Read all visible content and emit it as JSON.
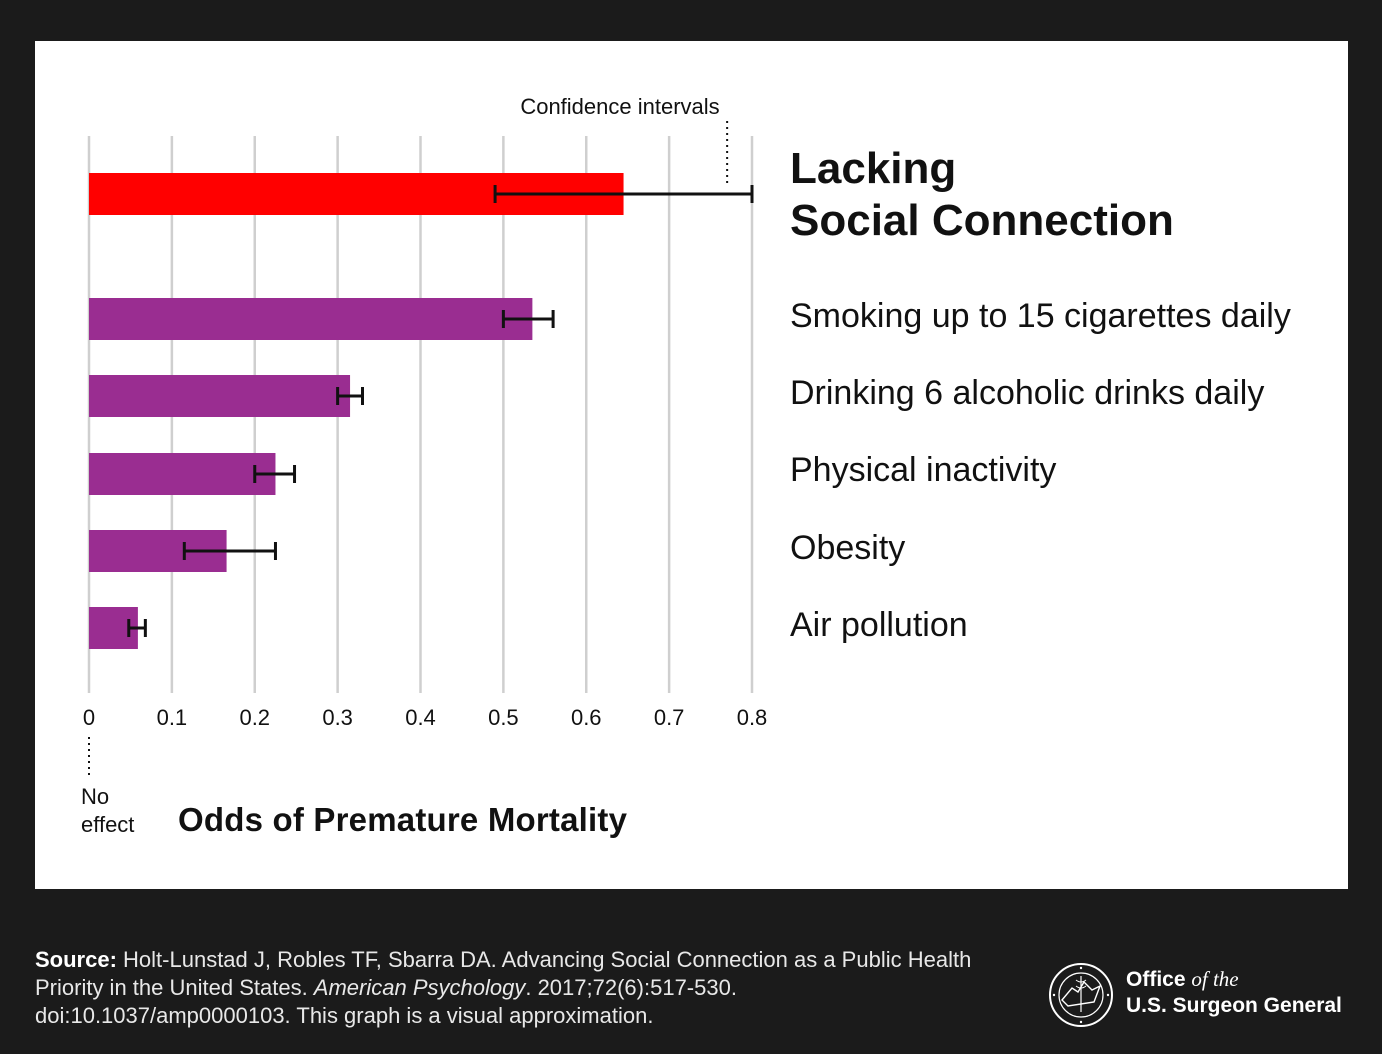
{
  "chart_data": {
    "type": "bar",
    "orientation": "horizontal",
    "categories": [
      "Lacking Social Connection",
      "Smoking up to 15 cigarettes daily",
      "Drinking 6 alcoholic drinks daily",
      "Physical inactivity",
      "Obesity",
      "Air pollution"
    ],
    "category_lines": [
      [
        "Lacking",
        "Social Connection"
      ],
      [
        "Smoking up to 15 cigarettes daily"
      ],
      [
        "Drinking 6 alcoholic drinks daily"
      ],
      [
        "Physical inactivity"
      ],
      [
        "Obesity"
      ],
      [
        "Air pollution"
      ]
    ],
    "values": [
      0.645,
      0.535,
      0.315,
      0.225,
      0.166,
      0.059
    ],
    "ci_low": [
      0.49,
      0.5,
      0.3,
      0.2,
      0.115,
      0.048
    ],
    "ci_high": [
      0.8,
      0.56,
      0.33,
      0.248,
      0.225,
      0.068
    ],
    "colors": [
      "#ff0000",
      "#9a2d91",
      "#9a2d91",
      "#9a2d91",
      "#9a2d91",
      "#9a2d91"
    ],
    "xlim": [
      0,
      0.8
    ],
    "xticks": [
      "0",
      "0.1",
      "0.2",
      "0.3",
      "0.4",
      "0.5",
      "0.6",
      "0.7",
      "0.8"
    ],
    "grid": true,
    "xlabel": "Odds of Premature Mortality",
    "zero_annotation": [
      "No",
      "effect"
    ],
    "ci_annotation": "Confidence intervals",
    "ci_annotation_x": 0.77
  },
  "footer": {
    "source_label": "Source:",
    "source_text": " Holt-Lunstad J, Robles TF, Sbarra DA. Advancing Social Connection as a Public Health Priority in the United States. ",
    "journal": "American Psychology",
    "citation_rest": ". 2017;72(6):517-530. doi:10.1037/amp0000103. This graph is a visual approximation.",
    "office_line1_a": "Office ",
    "office_line1_b": "of the",
    "office_line2": "U.S. Surgeon General",
    "seal_text": "U.S. PUBLIC HEALTH SERVICE 1798"
  },
  "colors": {
    "highlight": "#ff0000",
    "bar": "#9a2d91",
    "grid": "#cfcfcf",
    "background": "#1b1b1b"
  }
}
